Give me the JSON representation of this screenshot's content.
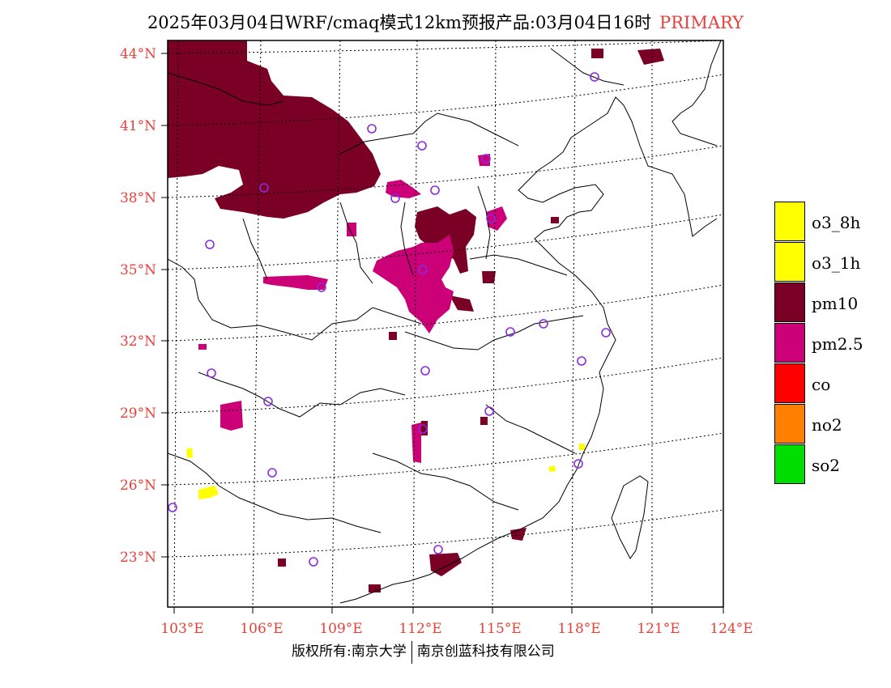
{
  "title": {
    "main": "2025年03月04日WRF/cmaq模式12km预报产品:03月04日16时",
    "tag": "PRIMARY",
    "tag_color": "#e8413c"
  },
  "axes": {
    "lat_labels": [
      "44°N",
      "41°N",
      "38°N",
      "35°N",
      "32°N",
      "29°N",
      "26°N",
      "23°N"
    ],
    "lon_labels": [
      "103°E",
      "106°E",
      "109°E",
      "112°E",
      "115°E",
      "118°E",
      "121°E",
      "124°E"
    ]
  },
  "legend": [
    {
      "label": "o3_8h",
      "color": "#ffff00"
    },
    {
      "label": "o3_1h",
      "color": "#ffff00"
    },
    {
      "label": "pm10",
      "color": "#7a0026"
    },
    {
      "label": "pm2.5",
      "color": "#cc0077"
    },
    {
      "label": "co",
      "color": "#ff0000"
    },
    {
      "label": "no2",
      "color": "#ff8000"
    },
    {
      "label": "so2",
      "color": "#00dd00"
    }
  ],
  "footer": {
    "left": "版权所有:南京大学",
    "right": "南京创蓝科技有限公司"
  },
  "colors": {
    "pm10": "#7a0026",
    "pm25": "#cc0077",
    "o3": "#ffff00",
    "station": "#8a2be2"
  },
  "icons": {
    "station": "station-circle-icon"
  }
}
